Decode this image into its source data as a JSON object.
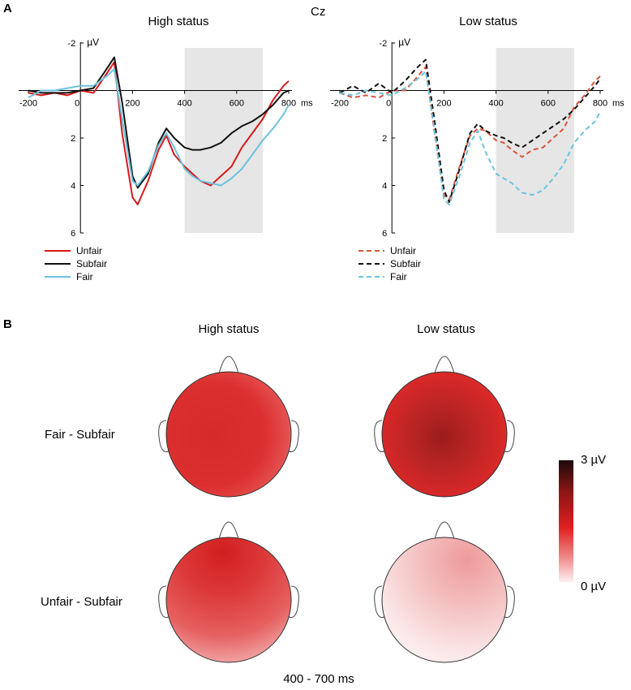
{
  "figure": {
    "panel_a_letter": "A",
    "panel_b_letter": "B",
    "electrode_label": "Cz",
    "window_label": "400 - 700 ms"
  },
  "colors": {
    "unfair": "#d7191c",
    "subfair": "#111111",
    "fair": "#6cc3dc",
    "unfair_low": "#d9543a",
    "fair_low": "#6cc3dc",
    "window_shade": "#e6e6e6"
  },
  "chart_data": [
    {
      "type": "line",
      "title": "High status",
      "xunit": "ms",
      "yunit": "µV",
      "xlim": [
        -220,
        820
      ],
      "ylim": [
        -2,
        6
      ],
      "y_inverted": true,
      "xticks": [
        -200,
        0,
        200,
        400,
        600,
        800
      ],
      "yticks": [
        -2,
        2,
        4,
        6
      ],
      "shaded_window": [
        400,
        700
      ],
      "line_style": "solid",
      "legend": [
        "Unfair",
        "Subfair",
        "Fair"
      ],
      "series": [
        {
          "name": "Unfair",
          "color_key": "unfair",
          "x": [
            -200,
            -150,
            -100,
            -50,
            0,
            50,
            100,
            130,
            160,
            200,
            220,
            260,
            300,
            330,
            360,
            400,
            430,
            460,
            500,
            540,
            580,
            620,
            660,
            700,
            740,
            780,
            800
          ],
          "y": [
            0.1,
            0.2,
            0.1,
            0.2,
            0.0,
            0.1,
            -0.7,
            -1.2,
            1.8,
            4.5,
            4.8,
            3.8,
            2.5,
            1.9,
            2.7,
            3.2,
            3.5,
            3.8,
            4.0,
            3.6,
            3.2,
            2.4,
            1.8,
            1.2,
            0.4,
            -0.2,
            -0.4
          ]
        },
        {
          "name": "Subfair",
          "color_key": "subfair",
          "x": [
            -200,
            -150,
            -100,
            -50,
            0,
            50,
            100,
            130,
            160,
            200,
            220,
            260,
            300,
            330,
            360,
            400,
            430,
            460,
            500,
            540,
            580,
            620,
            660,
            700,
            740,
            780,
            800
          ],
          "y": [
            0.0,
            0.1,
            0.1,
            0.1,
            0.0,
            -0.1,
            -0.9,
            -1.4,
            0.5,
            3.6,
            4.1,
            3.5,
            2.2,
            1.6,
            2.0,
            2.4,
            2.5,
            2.5,
            2.4,
            2.2,
            1.8,
            1.5,
            1.3,
            1.0,
            0.6,
            0.1,
            0.0
          ]
        },
        {
          "name": "Fair",
          "color_key": "fair",
          "x": [
            -200,
            -150,
            -100,
            -50,
            0,
            50,
            100,
            130,
            160,
            200,
            220,
            260,
            300,
            330,
            360,
            400,
            430,
            460,
            500,
            540,
            580,
            620,
            660,
            700,
            740,
            780,
            800
          ],
          "y": [
            0.3,
            0.0,
            0.0,
            -0.1,
            -0.2,
            -0.2,
            -0.6,
            -0.9,
            1.2,
            3.8,
            4.0,
            3.4,
            2.3,
            1.8,
            2.4,
            3.3,
            3.6,
            3.8,
            3.9,
            4.0,
            3.7,
            3.3,
            2.7,
            2.1,
            1.6,
            1.0,
            0.6
          ]
        }
      ]
    },
    {
      "type": "line",
      "title": "Low status",
      "xunit": "ms",
      "yunit": "µV",
      "xlim": [
        -220,
        820
      ],
      "ylim": [
        -2,
        6
      ],
      "y_inverted": true,
      "xticks": [
        -200,
        0,
        200,
        400,
        600,
        800
      ],
      "yticks": [
        -2,
        2,
        4,
        6
      ],
      "shaded_window": [
        400,
        700
      ],
      "line_style": "dashed",
      "legend": [
        "Unfair",
        "Subfair",
        "Fair"
      ],
      "series": [
        {
          "name": "Unfair",
          "color_key": "unfair_low",
          "x": [
            -200,
            -150,
            -100,
            -50,
            0,
            50,
            100,
            130,
            160,
            200,
            220,
            260,
            300,
            330,
            360,
            400,
            430,
            460,
            500,
            540,
            580,
            620,
            660,
            700,
            740,
            780,
            800
          ],
          "y": [
            0.1,
            0.3,
            0.2,
            0.3,
            0.0,
            0.0,
            -0.6,
            -1.0,
            1.5,
            4.4,
            4.6,
            3.2,
            1.9,
            1.6,
            1.7,
            2.1,
            2.2,
            2.5,
            2.8,
            2.5,
            2.4,
            2.0,
            1.6,
            0.7,
            0.2,
            -0.4,
            -0.6
          ]
        },
        {
          "name": "Subfair",
          "color_key": "subfair",
          "x": [
            -200,
            -150,
            -100,
            -50,
            0,
            50,
            100,
            130,
            160,
            200,
            220,
            260,
            300,
            330,
            360,
            400,
            430,
            460,
            500,
            540,
            580,
            620,
            660,
            700,
            740,
            780,
            800
          ],
          "y": [
            0.1,
            -0.2,
            0.1,
            -0.3,
            0.1,
            -0.4,
            -1.0,
            -1.3,
            1.0,
            4.2,
            4.7,
            3.3,
            1.8,
            1.4,
            1.7,
            1.9,
            2.0,
            2.2,
            2.4,
            2.1,
            1.8,
            1.5,
            1.2,
            0.8,
            0.3,
            -0.2,
            -0.5
          ]
        },
        {
          "name": "Fair",
          "color_key": "fair_low",
          "x": [
            -200,
            -150,
            -100,
            -50,
            0,
            50,
            100,
            130,
            160,
            200,
            220,
            260,
            300,
            330,
            360,
            400,
            430,
            460,
            500,
            540,
            580,
            620,
            660,
            700,
            740,
            780,
            800
          ],
          "y": [
            0.1,
            0.2,
            0.0,
            0.1,
            0.2,
            -0.1,
            -0.5,
            -0.8,
            1.4,
            4.6,
            4.8,
            3.6,
            2.2,
            1.7,
            2.6,
            3.5,
            3.7,
            3.9,
            4.3,
            4.4,
            4.2,
            3.7,
            3.1,
            2.2,
            1.7,
            1.3,
            0.9
          ]
        }
      ]
    }
  ],
  "topomaps": {
    "column_titles": [
      "High status",
      "Low status"
    ],
    "row_labels": [
      "Fair - Subfair",
      "Unfair - Subfair"
    ],
    "maps": [
      {
        "row": "Fair - Subfair",
        "column": "High status",
        "mean_level": 0.62
      },
      {
        "row": "Fair - Subfair",
        "column": "Low status",
        "mean_level": 0.74
      },
      {
        "row": "Unfair - Subfair",
        "column": "High status",
        "mean_level": 0.55
      },
      {
        "row": "Unfair - Subfair",
        "column": "Low status",
        "mean_level": 0.18
      }
    ],
    "colorbar": {
      "max_label": "3 µV",
      "min_label": "0 µV",
      "max_value": 3,
      "min_value": 0
    }
  }
}
